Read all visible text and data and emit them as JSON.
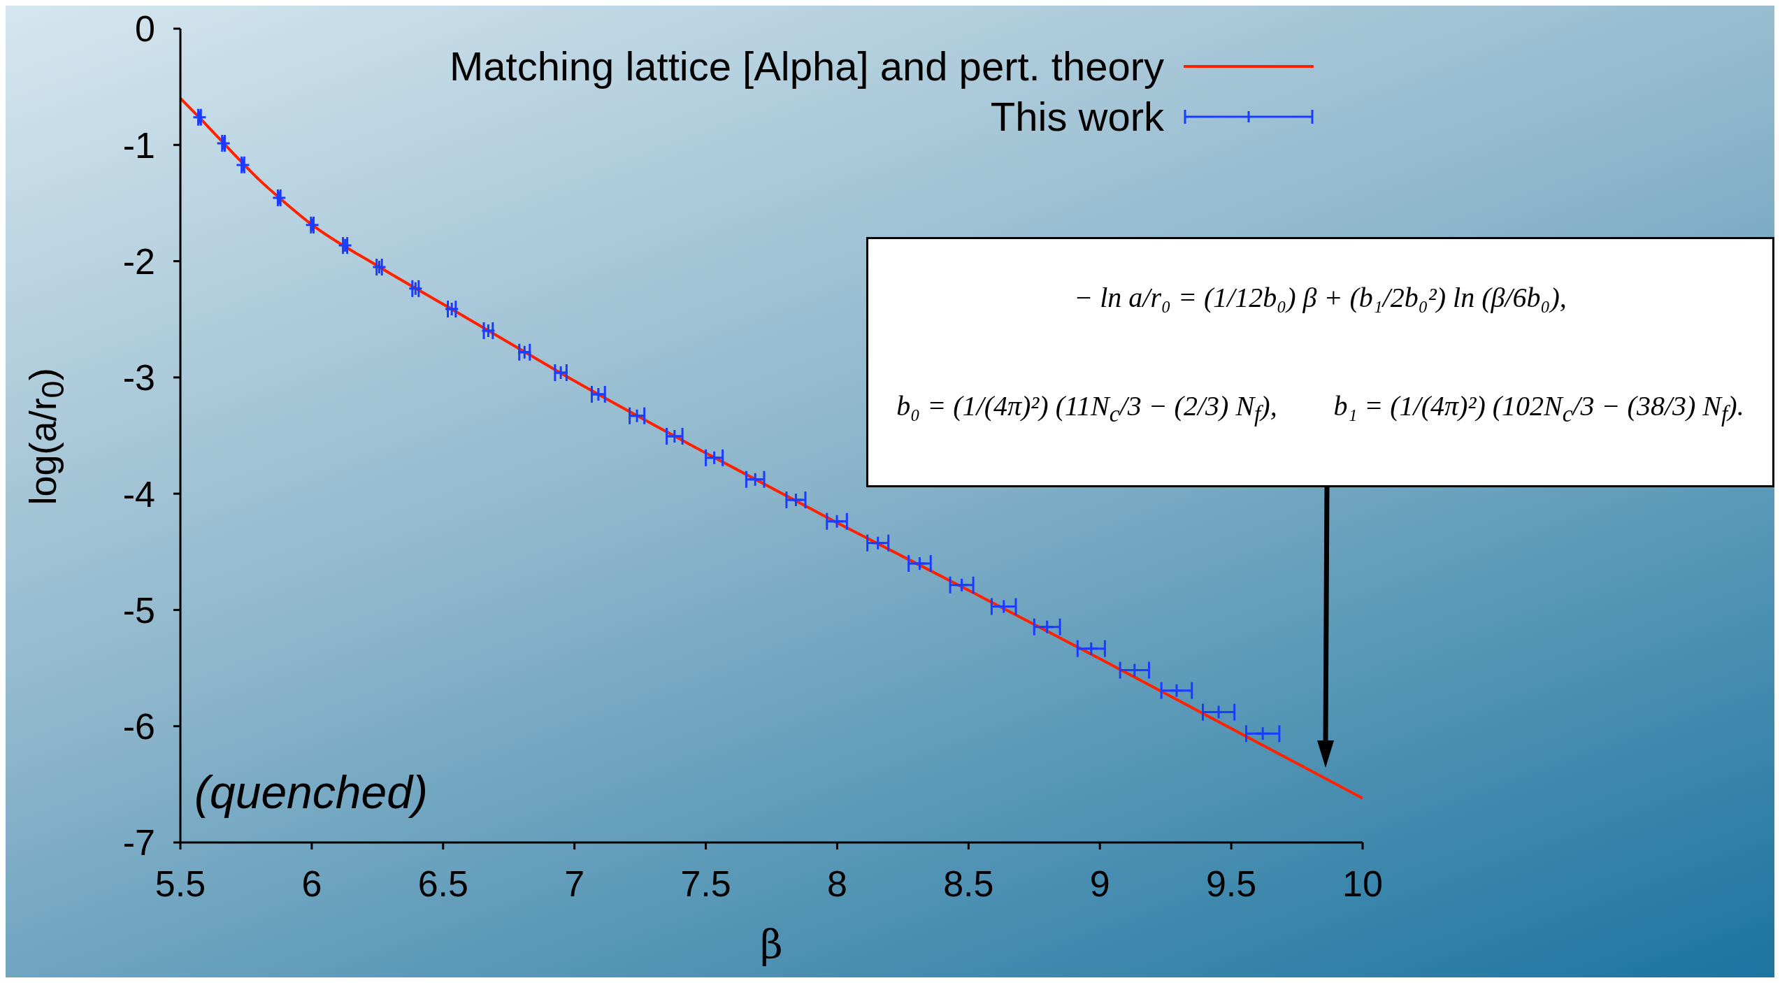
{
  "chart_data": {
    "type": "line",
    "xlabel": "β",
    "ylabel": "log(a/r$_{0}$)",
    "xlim": [
      5.5,
      10
    ],
    "xticks": [
      5.5,
      6,
      6.5,
      7,
      7.5,
      8,
      8.5,
      9,
      9.5,
      10
    ],
    "ylim": [
      -7,
      0
    ],
    "yticks": [
      -7,
      -6,
      -5,
      -4,
      -3,
      -2,
      -1,
      0
    ],
    "legend": "top right",
    "series": [
      {
        "name": "Matching lattice [Alpha] and pert. theory",
        "color": "#ff2200",
        "x": [
          5.5,
          5.6,
          5.7,
          5.8,
          5.9,
          6.0,
          6.25,
          6.5,
          6.75,
          7,
          7.5,
          8,
          8.5,
          9,
          9.5,
          10
        ],
        "values": [
          -0.6,
          -0.83,
          -1.07,
          -1.3,
          -1.5,
          -1.685,
          -2.04,
          -2.37,
          -2.7,
          -3.03,
          -3.65,
          -4.25,
          -4.83,
          -5.42,
          -6.02,
          -6.62
        ]
      },
      {
        "name": "This work",
        "type": "scatter",
        "color": "#1a3cff",
        "marker": "cross",
        "x": [
          5.573,
          5.664,
          5.738,
          5.876,
          6.002,
          6.127,
          6.257,
          6.395,
          6.533,
          6.672,
          6.81,
          6.948,
          7.091,
          7.238,
          7.381,
          7.532,
          7.688,
          7.843,
          7.999,
          8.155,
          8.314,
          8.474,
          8.634,
          8.799,
          8.967,
          9.132,
          9.292,
          9.452,
          9.62
        ],
        "values": [
          -0.762,
          -0.986,
          -1.172,
          -1.455,
          -1.689,
          -1.865,
          -2.051,
          -2.236,
          -2.412,
          -2.598,
          -2.783,
          -2.959,
          -3.145,
          -3.33,
          -3.506,
          -3.691,
          -3.877,
          -4.053,
          -4.238,
          -4.424,
          -4.6,
          -4.785,
          -4.971,
          -5.146,
          -5.332,
          -5.518,
          -5.693,
          -5.879,
          -6.064
        ],
        "xerrors": [
          0.005,
          0.005,
          0.005,
          0.005,
          0.005,
          0.008,
          0.01,
          0.012,
          0.015,
          0.017,
          0.02,
          0.022,
          0.025,
          0.028,
          0.03,
          0.032,
          0.034,
          0.036,
          0.038,
          0.04,
          0.042,
          0.044,
          0.046,
          0.049,
          0.052,
          0.055,
          0.058,
          0.06,
          0.063
        ]
      }
    ],
    "annotations": [
      "− ln a/r₀ = (1/12b₀) β + (b₁/2b₀²) ln (β/6b₀),",
      "b₀ = (1/(4π)²) (11N$_{c}$/3 − (2/3) N$_{f}$),",
      "b₁ = (1/(4π)²) (102N$_{c}$/3 − (38/3) N$_{f}$).",
      "(quenched)"
    ]
  }
}
